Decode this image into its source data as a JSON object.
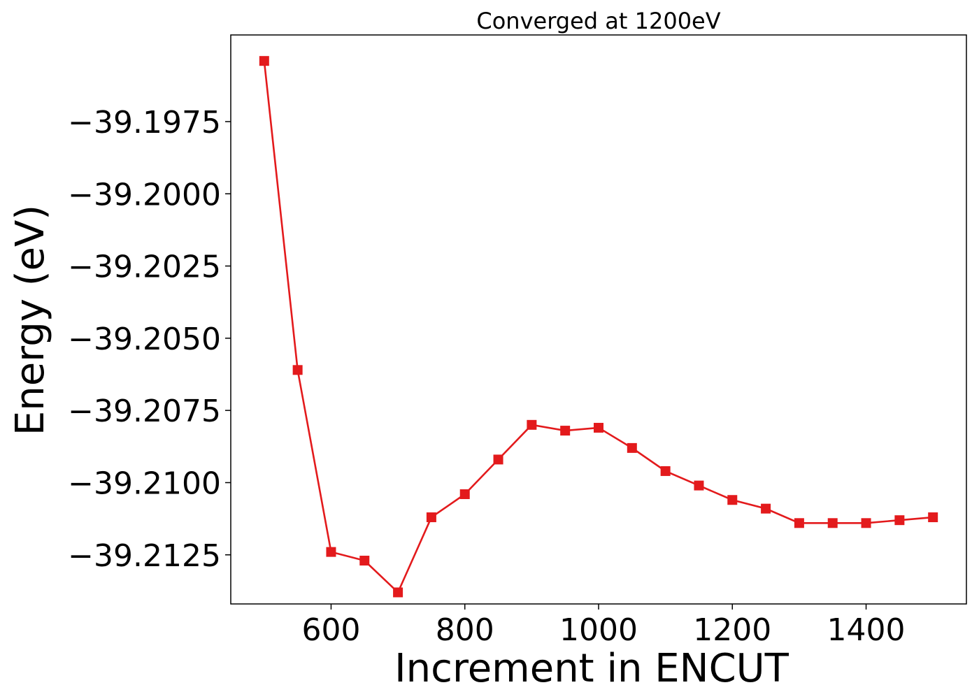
{
  "chart_data": {
    "type": "line",
    "title": "Converged at 1200eV",
    "xlabel": "Increment in ENCUT",
    "ylabel": "Energy (eV)",
    "xlim": [
      450,
      1550
    ],
    "ylim": [
      -39.2142,
      -39.1945
    ],
    "xticks": [
      600,
      800,
      1000,
      1200,
      1400
    ],
    "yticks": [
      -39.1975,
      -39.2,
      -39.2025,
      -39.205,
      -39.2075,
      -39.21,
      -39.2125
    ],
    "ytick_labels": [
      "−39.1975",
      "−39.2000",
      "−39.2025",
      "−39.2050",
      "−39.2075",
      "−39.2100",
      "−39.2125"
    ],
    "grid": false,
    "series": [
      {
        "color": "#e31a1c",
        "marker": "square",
        "x": [
          500,
          550,
          600,
          650,
          700,
          750,
          800,
          850,
          900,
          950,
          1000,
          1050,
          1100,
          1150,
          1200,
          1250,
          1300,
          1350,
          1400,
          1450,
          1500
        ],
        "y": [
          -39.1954,
          -39.2061,
          -39.2124,
          -39.2127,
          -39.2138,
          -39.2112,
          -39.2104,
          -39.2092,
          -39.208,
          -39.2082,
          -39.2081,
          -39.2088,
          -39.2096,
          -39.2101,
          -39.2106,
          -39.2109,
          -39.2114,
          -39.2114,
          -39.2114,
          -39.2113,
          -39.2112
        ]
      }
    ]
  }
}
